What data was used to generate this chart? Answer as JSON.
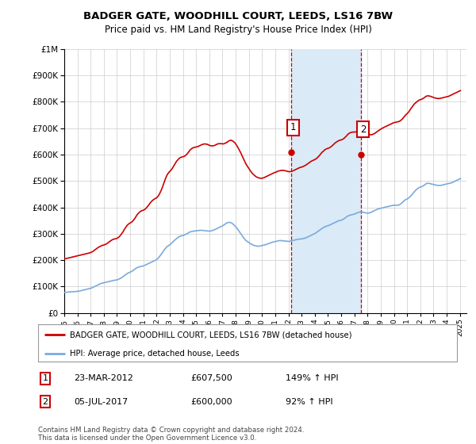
{
  "title": "BADGER GATE, WOODHILL COURT, LEEDS, LS16 7BW",
  "subtitle": "Price paid vs. HM Land Registry's House Price Index (HPI)",
  "legend_label_red": "BADGER GATE, WOODHILL COURT, LEEDS, LS16 7BW (detached house)",
  "legend_label_blue": "HPI: Average price, detached house, Leeds",
  "sale1_date": "23-MAR-2012",
  "sale1_price": "£607,500",
  "sale1_hpi": "149% ↑ HPI",
  "sale1_year": 2012.22,
  "sale1_value": 607500,
  "sale2_date": "05-JUL-2017",
  "sale2_price": "£600,000",
  "sale2_hpi": "92% ↑ HPI",
  "sale2_year": 2017.51,
  "sale2_value": 600000,
  "footer": "Contains HM Land Registry data © Crown copyright and database right 2024.\nThis data is licensed under the Open Government Licence v3.0.",
  "ylim": [
    0,
    1000000
  ],
  "xlim_start": 1995.0,
  "xlim_end": 2025.5,
  "red_color": "#cc0000",
  "blue_color": "#7aaadd",
  "shade_color": "#daeaf7",
  "grid_color": "#cccccc",
  "hpi_monthly_years": [
    1995.04,
    1995.13,
    1995.21,
    1995.29,
    1995.38,
    1995.46,
    1995.54,
    1995.63,
    1995.71,
    1995.79,
    1995.88,
    1995.96,
    1996.04,
    1996.13,
    1996.21,
    1996.29,
    1996.38,
    1996.46,
    1996.54,
    1996.63,
    1996.71,
    1996.79,
    1996.88,
    1996.96,
    1997.04,
    1997.13,
    1997.21,
    1997.29,
    1997.38,
    1997.46,
    1997.54,
    1997.63,
    1997.71,
    1997.79,
    1997.88,
    1997.96,
    1998.04,
    1998.13,
    1998.21,
    1998.29,
    1998.38,
    1998.46,
    1998.54,
    1998.63,
    1998.71,
    1998.79,
    1998.88,
    1998.96,
    1999.04,
    1999.13,
    1999.21,
    1999.29,
    1999.38,
    1999.46,
    1999.54,
    1999.63,
    1999.71,
    1999.79,
    1999.88,
    1999.96,
    2000.04,
    2000.13,
    2000.21,
    2000.29,
    2000.38,
    2000.46,
    2000.54,
    2000.63,
    2000.71,
    2000.79,
    2000.88,
    2000.96,
    2001.04,
    2001.13,
    2001.21,
    2001.29,
    2001.38,
    2001.46,
    2001.54,
    2001.63,
    2001.71,
    2001.79,
    2001.88,
    2001.96,
    2002.04,
    2002.13,
    2002.21,
    2002.29,
    2002.38,
    2002.46,
    2002.54,
    2002.63,
    2002.71,
    2002.79,
    2002.88,
    2002.96,
    2003.04,
    2003.13,
    2003.21,
    2003.29,
    2003.38,
    2003.46,
    2003.54,
    2003.63,
    2003.71,
    2003.79,
    2003.88,
    2003.96,
    2004.04,
    2004.13,
    2004.21,
    2004.29,
    2004.38,
    2004.46,
    2004.54,
    2004.63,
    2004.71,
    2004.79,
    2004.88,
    2004.96,
    2005.04,
    2005.13,
    2005.21,
    2005.29,
    2005.38,
    2005.46,
    2005.54,
    2005.63,
    2005.71,
    2005.79,
    2005.88,
    2005.96,
    2006.04,
    2006.13,
    2006.21,
    2006.29,
    2006.38,
    2006.46,
    2006.54,
    2006.63,
    2006.71,
    2006.79,
    2006.88,
    2006.96,
    2007.04,
    2007.13,
    2007.21,
    2007.29,
    2007.38,
    2007.46,
    2007.54,
    2007.63,
    2007.71,
    2007.79,
    2007.88,
    2007.96,
    2008.04,
    2008.13,
    2008.21,
    2008.29,
    2008.38,
    2008.46,
    2008.54,
    2008.63,
    2008.71,
    2008.79,
    2008.88,
    2008.96,
    2009.04,
    2009.13,
    2009.21,
    2009.29,
    2009.38,
    2009.46,
    2009.54,
    2009.63,
    2009.71,
    2009.79,
    2009.88,
    2009.96,
    2010.04,
    2010.13,
    2010.21,
    2010.29,
    2010.38,
    2010.46,
    2010.54,
    2010.63,
    2010.71,
    2010.79,
    2010.88,
    2010.96,
    2011.04,
    2011.13,
    2011.21,
    2011.29,
    2011.38,
    2011.46,
    2011.54,
    2011.63,
    2011.71,
    2011.79,
    2011.88,
    2011.96,
    2012.04,
    2012.13,
    2012.21,
    2012.29,
    2012.38,
    2012.46,
    2012.54,
    2012.63,
    2012.71,
    2012.79,
    2012.88,
    2012.96,
    2013.04,
    2013.13,
    2013.21,
    2013.29,
    2013.38,
    2013.46,
    2013.54,
    2013.63,
    2013.71,
    2013.79,
    2013.88,
    2013.96,
    2014.04,
    2014.13,
    2014.21,
    2014.29,
    2014.38,
    2014.46,
    2014.54,
    2014.63,
    2014.71,
    2014.79,
    2014.88,
    2014.96,
    2015.04,
    2015.13,
    2015.21,
    2015.29,
    2015.38,
    2015.46,
    2015.54,
    2015.63,
    2015.71,
    2015.79,
    2015.88,
    2015.96,
    2016.04,
    2016.13,
    2016.21,
    2016.29,
    2016.38,
    2016.46,
    2016.54,
    2016.63,
    2016.71,
    2016.79,
    2016.88,
    2016.96,
    2017.04,
    2017.13,
    2017.21,
    2017.29,
    2017.38,
    2017.46,
    2017.54,
    2017.63,
    2017.71,
    2017.79,
    2017.88,
    2017.96,
    2018.04,
    2018.13,
    2018.21,
    2018.29,
    2018.38,
    2018.46,
    2018.54,
    2018.63,
    2018.71,
    2018.79,
    2018.88,
    2018.96,
    2019.04,
    2019.13,
    2019.21,
    2019.29,
    2019.38,
    2019.46,
    2019.54,
    2019.63,
    2019.71,
    2019.79,
    2019.88,
    2019.96,
    2020.04,
    2020.13,
    2020.21,
    2020.29,
    2020.38,
    2020.46,
    2020.54,
    2020.63,
    2020.71,
    2020.79,
    2020.88,
    2020.96,
    2021.04,
    2021.13,
    2021.21,
    2021.29,
    2021.38,
    2021.46,
    2021.54,
    2021.63,
    2021.71,
    2021.79,
    2021.88,
    2021.96,
    2022.04,
    2022.13,
    2022.21,
    2022.29,
    2022.38,
    2022.46,
    2022.54,
    2022.63,
    2022.71,
    2022.79,
    2022.88,
    2022.96,
    2023.04,
    2023.13,
    2023.21,
    2023.29,
    2023.38,
    2023.46,
    2023.54,
    2023.63,
    2023.71,
    2023.79,
    2023.88,
    2023.96,
    2024.04,
    2024.13,
    2024.21,
    2024.29,
    2024.38,
    2024.46,
    2024.54,
    2024.63,
    2024.71,
    2024.79,
    2024.88,
    2024.96,
    2025.04
  ],
  "hpi_monthly_values": [
    78000,
    78500,
    79000,
    79500,
    80000,
    80000,
    80500,
    80500,
    81000,
    81000,
    81500,
    82000,
    82500,
    83000,
    84000,
    85000,
    86000,
    87000,
    88000,
    89000,
    90000,
    91000,
    92000,
    93000,
    94000,
    96000,
    98000,
    100000,
    102000,
    104000,
    106000,
    108000,
    110000,
    112000,
    113000,
    114000,
    115000,
    116000,
    117000,
    118000,
    119000,
    120000,
    121000,
    122000,
    123000,
    124000,
    124500,
    125000,
    126000,
    128000,
    130000,
    132000,
    135000,
    138000,
    141000,
    144000,
    147000,
    150000,
    152000,
    154000,
    156000,
    158000,
    161000,
    164000,
    167000,
    170000,
    172000,
    174000,
    175000,
    176000,
    177000,
    178000,
    179000,
    181000,
    183000,
    185000,
    187000,
    189000,
    191000,
    193000,
    195000,
    197000,
    199000,
    201000,
    204000,
    208000,
    213000,
    218000,
    224000,
    230000,
    236000,
    242000,
    247000,
    251000,
    254000,
    257000,
    260000,
    264000,
    268000,
    272000,
    276000,
    280000,
    283000,
    286000,
    289000,
    291000,
    292000,
    293000,
    294000,
    296000,
    298000,
    300000,
    302000,
    305000,
    307000,
    308000,
    309000,
    310000,
    310500,
    311000,
    311500,
    312000,
    312500,
    313000,
    313000,
    313000,
    312500,
    312000,
    311500,
    311000,
    310500,
    310000,
    310000,
    311000,
    312000,
    313000,
    315000,
    317000,
    319000,
    321000,
    323000,
    325000,
    327000,
    329000,
    331000,
    334000,
    337000,
    340000,
    342000,
    343000,
    343000,
    342000,
    340000,
    337000,
    333000,
    329000,
    324000,
    319000,
    313000,
    307000,
    301000,
    295000,
    289000,
    283000,
    278000,
    274000,
    271000,
    268000,
    265000,
    262000,
    260000,
    258000,
    256000,
    255000,
    254000,
    253000,
    253000,
    253000,
    254000,
    255000,
    256000,
    257000,
    258000,
    259000,
    261000,
    262000,
    264000,
    265000,
    267000,
    268000,
    269000,
    270000,
    271000,
    272000,
    273000,
    274000,
    274000,
    274000,
    274000,
    273000,
    273000,
    272000,
    272000,
    271000,
    271000,
    272000,
    273000,
    274000,
    275000,
    276000,
    277000,
    278000,
    279000,
    280000,
    280000,
    280000,
    281000,
    282000,
    283000,
    284000,
    286000,
    288000,
    290000,
    292000,
    294000,
    296000,
    298000,
    300000,
    302000,
    305000,
    308000,
    311000,
    314000,
    317000,
    320000,
    323000,
    325000,
    327000,
    329000,
    330000,
    331000,
    333000,
    335000,
    337000,
    339000,
    341000,
    343000,
    345000,
    347000,
    349000,
    350000,
    351000,
    352000,
    354000,
    357000,
    360000,
    363000,
    366000,
    368000,
    370000,
    371000,
    372000,
    373000,
    374000,
    375000,
    377000,
    379000,
    381000,
    382000,
    383000,
    383000,
    382000,
    381000,
    380000,
    379000,
    378000,
    378000,
    379000,
    380000,
    382000,
    384000,
    386000,
    388000,
    390000,
    392000,
    394000,
    395000,
    396000,
    397000,
    398000,
    399000,
    400000,
    401000,
    402000,
    403000,
    404000,
    405000,
    406000,
    407000,
    408000,
    408000,
    408000,
    408000,
    408000,
    409000,
    411000,
    414000,
    418000,
    422000,
    426000,
    429000,
    431000,
    433000,
    436000,
    440000,
    444000,
    449000,
    454000,
    459000,
    464000,
    468000,
    471000,
    474000,
    476000,
    477000,
    479000,
    481000,
    484000,
    487000,
    490000,
    491000,
    491000,
    490000,
    489000,
    488000,
    487000,
    486000,
    485000,
    484000,
    483000,
    483000,
    483000,
    483000,
    484000,
    485000,
    486000,
    487000,
    488000,
    489000,
    490000,
    491000,
    492000,
    493000,
    495000,
    497000,
    499000,
    501000,
    503000,
    505000,
    507000,
    509000
  ],
  "prop_monthly_years": [
    1995.04,
    1995.13,
    1995.21,
    1995.29,
    1995.38,
    1995.46,
    1995.54,
    1995.63,
    1995.71,
    1995.79,
    1995.88,
    1995.96,
    1996.04,
    1996.13,
    1996.21,
    1996.29,
    1996.38,
    1996.46,
    1996.54,
    1996.63,
    1996.71,
    1996.79,
    1996.88,
    1996.96,
    1997.04,
    1997.13,
    1997.21,
    1997.29,
    1997.38,
    1997.46,
    1997.54,
    1997.63,
    1997.71,
    1997.79,
    1997.88,
    1997.96,
    1998.04,
    1998.13,
    1998.21,
    1998.29,
    1998.38,
    1998.46,
    1998.54,
    1998.63,
    1998.71,
    1998.79,
    1998.88,
    1998.96,
    1999.04,
    1999.13,
    1999.21,
    1999.29,
    1999.38,
    1999.46,
    1999.54,
    1999.63,
    1999.71,
    1999.79,
    1999.88,
    1999.96,
    2000.04,
    2000.13,
    2000.21,
    2000.29,
    2000.38,
    2000.46,
    2000.54,
    2000.63,
    2000.71,
    2000.79,
    2000.88,
    2000.96,
    2001.04,
    2001.13,
    2001.21,
    2001.29,
    2001.38,
    2001.46,
    2001.54,
    2001.63,
    2001.71,
    2001.79,
    2001.88,
    2001.96,
    2002.04,
    2002.13,
    2002.21,
    2002.29,
    2002.38,
    2002.46,
    2002.54,
    2002.63,
    2002.71,
    2002.79,
    2002.88,
    2002.96,
    2003.04,
    2003.13,
    2003.21,
    2003.29,
    2003.38,
    2003.46,
    2003.54,
    2003.63,
    2003.71,
    2003.79,
    2003.88,
    2003.96,
    2004.04,
    2004.13,
    2004.21,
    2004.29,
    2004.38,
    2004.46,
    2004.54,
    2004.63,
    2004.71,
    2004.79,
    2004.88,
    2004.96,
    2005.04,
    2005.13,
    2005.21,
    2005.29,
    2005.38,
    2005.46,
    2005.54,
    2005.63,
    2005.71,
    2005.79,
    2005.88,
    2005.96,
    2006.04,
    2006.13,
    2006.21,
    2006.29,
    2006.38,
    2006.46,
    2006.54,
    2006.63,
    2006.71,
    2006.79,
    2006.88,
    2006.96,
    2007.04,
    2007.13,
    2007.21,
    2007.29,
    2007.38,
    2007.46,
    2007.54,
    2007.63,
    2007.71,
    2007.79,
    2007.88,
    2007.96,
    2008.04,
    2008.13,
    2008.21,
    2008.29,
    2008.38,
    2008.46,
    2008.54,
    2008.63,
    2008.71,
    2008.79,
    2008.88,
    2008.96,
    2009.04,
    2009.13,
    2009.21,
    2009.29,
    2009.38,
    2009.46,
    2009.54,
    2009.63,
    2009.71,
    2009.79,
    2009.88,
    2009.96,
    2010.04,
    2010.13,
    2010.21,
    2010.29,
    2010.38,
    2010.46,
    2010.54,
    2010.63,
    2010.71,
    2010.79,
    2010.88,
    2010.96,
    2011.04,
    2011.13,
    2011.21,
    2011.29,
    2011.38,
    2011.46,
    2011.54,
    2011.63,
    2011.71,
    2011.79,
    2011.88,
    2011.96,
    2012.04,
    2012.13,
    2012.21,
    2012.29,
    2012.38,
    2012.46,
    2012.54,
    2012.63,
    2012.71,
    2012.79,
    2012.88,
    2012.96,
    2013.04,
    2013.13,
    2013.21,
    2013.29,
    2013.38,
    2013.46,
    2013.54,
    2013.63,
    2013.71,
    2013.79,
    2013.88,
    2013.96,
    2014.04,
    2014.13,
    2014.21,
    2014.29,
    2014.38,
    2014.46,
    2014.54,
    2014.63,
    2014.71,
    2014.79,
    2014.88,
    2014.96,
    2015.04,
    2015.13,
    2015.21,
    2015.29,
    2015.38,
    2015.46,
    2015.54,
    2015.63,
    2015.71,
    2015.79,
    2015.88,
    2015.96,
    2016.04,
    2016.13,
    2016.21,
    2016.29,
    2016.38,
    2016.46,
    2016.54,
    2016.63,
    2016.71,
    2016.79,
    2016.88,
    2016.96,
    2017.04,
    2017.13,
    2017.21,
    2017.29,
    2017.38,
    2017.46,
    2017.54,
    2017.63,
    2017.71,
    2017.79,
    2017.88,
    2017.96,
    2018.04,
    2018.13,
    2018.21,
    2018.29,
    2018.38,
    2018.46,
    2018.54,
    2018.63,
    2018.71,
    2018.79,
    2018.88,
    2018.96,
    2019.04,
    2019.13,
    2019.21,
    2019.29,
    2019.38,
    2019.46,
    2019.54,
    2019.63,
    2019.71,
    2019.79,
    2019.88,
    2019.96,
    2020.04,
    2020.13,
    2020.21,
    2020.29,
    2020.38,
    2020.46,
    2020.54,
    2020.63,
    2020.71,
    2020.79,
    2020.88,
    2020.96,
    2021.04,
    2021.13,
    2021.21,
    2021.29,
    2021.38,
    2021.46,
    2021.54,
    2021.63,
    2021.71,
    2021.79,
    2021.88,
    2021.96,
    2022.04,
    2022.13,
    2022.21,
    2022.29,
    2022.38,
    2022.46,
    2022.54,
    2022.63,
    2022.71,
    2022.79,
    2022.88,
    2022.96,
    2023.04,
    2023.13,
    2023.21,
    2023.29,
    2023.38,
    2023.46,
    2023.54,
    2023.63,
    2023.71,
    2023.79,
    2023.88,
    2023.96,
    2024.04,
    2024.13,
    2024.21,
    2024.29,
    2024.38,
    2024.46,
    2024.54,
    2024.63,
    2024.71,
    2024.79,
    2024.88,
    2024.96,
    2025.04
  ],
  "prop_monthly_values": [
    205000,
    206000,
    207000,
    208000,
    209000,
    210000,
    211000,
    212000,
    213000,
    214000,
    215000,
    216000,
    217000,
    218000,
    219000,
    220000,
    221000,
    222000,
    223000,
    224000,
    225000,
    226000,
    227000,
    228000,
    230000,
    232000,
    235000,
    238000,
    241000,
    244000,
    247000,
    250000,
    252000,
    254000,
    256000,
    257000,
    258000,
    260000,
    262000,
    265000,
    268000,
    271000,
    274000,
    277000,
    279000,
    280000,
    281000,
    282000,
    284000,
    287000,
    291000,
    296000,
    302000,
    308000,
    315000,
    322000,
    328000,
    333000,
    337000,
    340000,
    342000,
    345000,
    349000,
    354000,
    360000,
    367000,
    373000,
    378000,
    382000,
    385000,
    387000,
    389000,
    390000,
    393000,
    397000,
    402000,
    407000,
    413000,
    418000,
    423000,
    427000,
    430000,
    433000,
    435000,
    438000,
    443000,
    450000,
    458000,
    468000,
    478000,
    490000,
    502000,
    513000,
    522000,
    529000,
    534000,
    538000,
    543000,
    549000,
    556000,
    563000,
    570000,
    576000,
    581000,
    585000,
    588000,
    590000,
    591000,
    592000,
    594000,
    597000,
    601000,
    606000,
    612000,
    617000,
    621000,
    624000,
    626000,
    627000,
    628000,
    629000,
    630000,
    632000,
    634000,
    636000,
    638000,
    639000,
    640000,
    640000,
    639000,
    638000,
    636000,
    634000,
    633000,
    633000,
    633000,
    634000,
    636000,
    638000,
    640000,
    641000,
    641000,
    641000,
    641000,
    640000,
    641000,
    643000,
    645000,
    648000,
    651000,
    653000,
    654000,
    653000,
    651000,
    647000,
    643000,
    637000,
    630000,
    623000,
    615000,
    607000,
    598000,
    589000,
    580000,
    571000,
    563000,
    556000,
    550000,
    543000,
    537000,
    532000,
    527000,
    523000,
    519000,
    516000,
    514000,
    512000,
    511000,
    510000,
    510000,
    511000,
    512000,
    514000,
    516000,
    518000,
    520000,
    522000,
    524000,
    526000,
    528000,
    530000,
    532000,
    533000,
    535000,
    537000,
    538000,
    539000,
    540000,
    540000,
    540000,
    539000,
    538000,
    537000,
    536000,
    535000,
    535000,
    536000,
    537000,
    539000,
    541000,
    543000,
    545000,
    547000,
    549000,
    551000,
    552000,
    553000,
    555000,
    557000,
    559000,
    562000,
    565000,
    568000,
    571000,
    574000,
    576000,
    578000,
    580000,
    582000,
    585000,
    589000,
    593000,
    598000,
    603000,
    608000,
    612000,
    616000,
    619000,
    621000,
    623000,
    624000,
    626000,
    629000,
    632000,
    636000,
    640000,
    644000,
    647000,
    650000,
    652000,
    654000,
    655000,
    656000,
    658000,
    661000,
    665000,
    669000,
    674000,
    678000,
    681000,
    683000,
    684000,
    685000,
    685000,
    685000,
    686000,
    688000,
    690000,
    692000,
    694000,
    694000,
    693000,
    691000,
    688000,
    685000,
    681000,
    678000,
    676000,
    675000,
    675000,
    676000,
    678000,
    680000,
    683000,
    686000,
    689000,
    692000,
    695000,
    697000,
    700000,
    702000,
    704000,
    706000,
    708000,
    710000,
    712000,
    714000,
    716000,
    718000,
    720000,
    721000,
    722000,
    723000,
    724000,
    725000,
    727000,
    730000,
    734000,
    739000,
    744000,
    749000,
    753000,
    757000,
    762000,
    768000,
    774000,
    780000,
    786000,
    791000,
    795000,
    799000,
    802000,
    805000,
    807000,
    808000,
    810000,
    812000,
    815000,
    818000,
    821000,
    822000,
    822000,
    821000,
    820000,
    818000,
    817000,
    815000,
    814000,
    813000,
    812000,
    812000,
    812000,
    813000,
    814000,
    815000,
    816000,
    817000,
    818000,
    819000,
    820000,
    822000,
    824000,
    826000,
    828000,
    830000,
    832000,
    834000,
    836000,
    838000,
    840000,
    842000
  ]
}
